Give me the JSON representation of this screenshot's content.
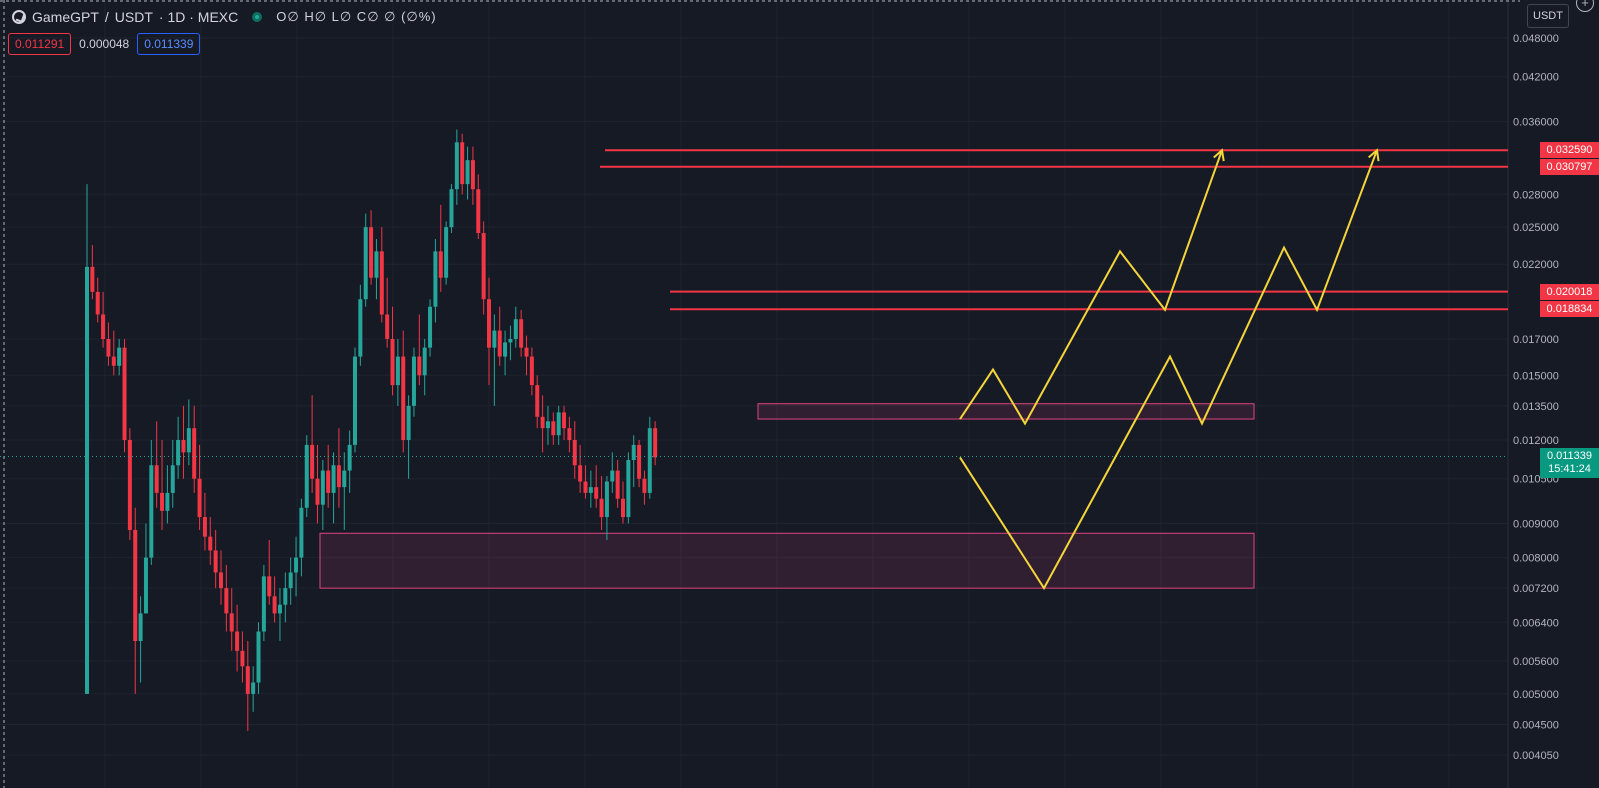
{
  "header": {
    "symbol": "GameGPT",
    "separator": "/",
    "quote": "USDT",
    "meta": "· 1D · MEXC",
    "ohlc": "O∅ H∅ L∅ C∅ ∅ (∅%)",
    "icons": [
      "logo-icon",
      "status-dot-icon"
    ]
  },
  "price_boxes": {
    "bid": "0.011291",
    "spread": "0.000048",
    "ask": "0.011339"
  },
  "toolbar": {
    "currency": "USDT",
    "add_icon": "plus-icon"
  },
  "colors": {
    "background": "#161a25",
    "up": "#26a69a",
    "down": "#f23645",
    "level_line": "#f23645",
    "zone_border": "#e0457d",
    "projection": "#f5d53a",
    "axis_text": "#b2b5be"
  },
  "axis_labels": [
    "0.048000",
    "0.042000",
    "0.036000",
    "0.028000",
    "0.025000",
    "0.022000",
    "0.017000",
    "0.015000",
    "0.013500",
    "0.012000",
    "0.010500",
    "0.009000",
    "0.008000",
    "0.007200",
    "0.006400",
    "0.005600",
    "0.005000",
    "0.004500",
    "0.004050"
  ],
  "level_tags": [
    "0.032590",
    "0.030797",
    "0.020018",
    "0.018834"
  ],
  "current_price": {
    "price": "0.011339",
    "countdown": "15:41:24"
  },
  "chart_data": {
    "type": "candlestick",
    "scale": "log",
    "ylim": [
      0.004,
      0.048
    ],
    "candles": [
      [
        0.005,
        0.029,
        0.005,
        0.0218
      ],
      [
        0.0218,
        0.0235,
        0.0195,
        0.02
      ],
      [
        0.02,
        0.021,
        0.018,
        0.0185
      ],
      [
        0.0185,
        0.02,
        0.0165,
        0.017
      ],
      [
        0.017,
        0.018,
        0.0155,
        0.016
      ],
      [
        0.016,
        0.0175,
        0.015,
        0.0155
      ],
      [
        0.0155,
        0.017,
        0.015,
        0.0165
      ],
      [
        0.0165,
        0.017,
        0.0115,
        0.012
      ],
      [
        0.012,
        0.0125,
        0.0085,
        0.0088
      ],
      [
        0.0088,
        0.0095,
        0.005,
        0.006
      ],
      [
        0.006,
        0.007,
        0.0052,
        0.0066
      ],
      [
        0.0066,
        0.009,
        0.0066,
        0.008
      ],
      [
        0.008,
        0.012,
        0.0078,
        0.011
      ],
      [
        0.011,
        0.0128,
        0.0095,
        0.01
      ],
      [
        0.01,
        0.012,
        0.0088,
        0.0094
      ],
      [
        0.0094,
        0.011,
        0.009,
        0.01
      ],
      [
        0.01,
        0.012,
        0.0095,
        0.011
      ],
      [
        0.011,
        0.013,
        0.0105,
        0.012
      ],
      [
        0.012,
        0.0135,
        0.0105,
        0.0115
      ],
      [
        0.0115,
        0.0138,
        0.011,
        0.0125
      ],
      [
        0.0125,
        0.0135,
        0.01,
        0.0105
      ],
      [
        0.0105,
        0.0118,
        0.0088,
        0.0092
      ],
      [
        0.0092,
        0.01,
        0.0082,
        0.0086
      ],
      [
        0.0086,
        0.0092,
        0.0078,
        0.0082
      ],
      [
        0.0082,
        0.0088,
        0.0072,
        0.0076
      ],
      [
        0.0076,
        0.0082,
        0.0068,
        0.0072
      ],
      [
        0.0072,
        0.0078,
        0.0062,
        0.0066
      ],
      [
        0.0066,
        0.0072,
        0.0058,
        0.0062
      ],
      [
        0.0062,
        0.0068,
        0.0054,
        0.0058
      ],
      [
        0.0058,
        0.0062,
        0.0052,
        0.0055
      ],
      [
        0.0055,
        0.006,
        0.0044,
        0.005
      ],
      [
        0.005,
        0.0055,
        0.0047,
        0.0052
      ],
      [
        0.0052,
        0.0064,
        0.005,
        0.0062
      ],
      [
        0.0062,
        0.0078,
        0.006,
        0.0075
      ],
      [
        0.0075,
        0.0085,
        0.0068,
        0.007
      ],
      [
        0.007,
        0.0075,
        0.0064,
        0.0066
      ],
      [
        0.0066,
        0.0072,
        0.006,
        0.0068
      ],
      [
        0.0068,
        0.0076,
        0.0064,
        0.0072
      ],
      [
        0.0072,
        0.008,
        0.0068,
        0.0076
      ],
      [
        0.0076,
        0.0086,
        0.007,
        0.008
      ],
      [
        0.008,
        0.0098,
        0.0075,
        0.0095
      ],
      [
        0.0095,
        0.0122,
        0.0092,
        0.0118
      ],
      [
        0.0118,
        0.014,
        0.01,
        0.0105
      ],
      [
        0.0105,
        0.0118,
        0.009,
        0.0096
      ],
      [
        0.0096,
        0.0112,
        0.0088,
        0.0108
      ],
      [
        0.0108,
        0.0118,
        0.0095,
        0.01
      ],
      [
        0.01,
        0.0115,
        0.009,
        0.011
      ],
      [
        0.011,
        0.0125,
        0.0095,
        0.0102
      ],
      [
        0.0102,
        0.0115,
        0.0088,
        0.0108
      ],
      [
        0.0108,
        0.0124,
        0.01,
        0.0118
      ],
      [
        0.0118,
        0.0165,
        0.0115,
        0.016
      ],
      [
        0.016,
        0.0205,
        0.0155,
        0.0195
      ],
      [
        0.0195,
        0.0262,
        0.019,
        0.025
      ],
      [
        0.025,
        0.0265,
        0.0205,
        0.021
      ],
      [
        0.021,
        0.024,
        0.0195,
        0.023
      ],
      [
        0.023,
        0.025,
        0.018,
        0.0185
      ],
      [
        0.0185,
        0.021,
        0.0165,
        0.017
      ],
      [
        0.017,
        0.019,
        0.014,
        0.0145
      ],
      [
        0.0145,
        0.017,
        0.0135,
        0.016
      ],
      [
        0.016,
        0.0175,
        0.0115,
        0.012
      ],
      [
        0.012,
        0.014,
        0.0105,
        0.0135
      ],
      [
        0.0135,
        0.0165,
        0.013,
        0.016
      ],
      [
        0.016,
        0.0185,
        0.0145,
        0.015
      ],
      [
        0.015,
        0.017,
        0.014,
        0.0165
      ],
      [
        0.0165,
        0.0195,
        0.016,
        0.019
      ],
      [
        0.019,
        0.024,
        0.018,
        0.023
      ],
      [
        0.023,
        0.027,
        0.02,
        0.021
      ],
      [
        0.021,
        0.0255,
        0.0205,
        0.025
      ],
      [
        0.025,
        0.029,
        0.0245,
        0.0285
      ],
      [
        0.0285,
        0.035,
        0.027,
        0.0335
      ],
      [
        0.0335,
        0.0345,
        0.028,
        0.029
      ],
      [
        0.029,
        0.033,
        0.0275,
        0.0315
      ],
      [
        0.0315,
        0.033,
        0.027,
        0.0285
      ],
      [
        0.0285,
        0.03,
        0.024,
        0.0245
      ],
      [
        0.0245,
        0.0255,
        0.0185,
        0.0195
      ],
      [
        0.0195,
        0.021,
        0.0145,
        0.0165
      ],
      [
        0.0165,
        0.0185,
        0.0135,
        0.0175
      ],
      [
        0.0175,
        0.019,
        0.0155,
        0.016
      ],
      [
        0.016,
        0.0175,
        0.015,
        0.0168
      ],
      [
        0.0168,
        0.0178,
        0.0158,
        0.017
      ],
      [
        0.017,
        0.019,
        0.0165,
        0.0182
      ],
      [
        0.0182,
        0.0188,
        0.016,
        0.0165
      ],
      [
        0.0165,
        0.0172,
        0.015,
        0.016
      ],
      [
        0.016,
        0.0165,
        0.014,
        0.0145
      ],
      [
        0.0145,
        0.015,
        0.0125,
        0.013
      ],
      [
        0.013,
        0.014,
        0.0115,
        0.0125
      ],
      [
        0.0125,
        0.0135,
        0.0118,
        0.0128
      ],
      [
        0.0128,
        0.0132,
        0.0118,
        0.0122
      ],
      [
        0.0122,
        0.0135,
        0.0118,
        0.0132
      ],
      [
        0.0132,
        0.0135,
        0.012,
        0.0125
      ],
      [
        0.0125,
        0.013,
        0.0115,
        0.012
      ],
      [
        0.012,
        0.0128,
        0.0105,
        0.011
      ],
      [
        0.011,
        0.0118,
        0.01,
        0.0104
      ],
      [
        0.0104,
        0.011,
        0.0098,
        0.01
      ],
      [
        0.01,
        0.0108,
        0.0095,
        0.0102
      ],
      [
        0.0102,
        0.011,
        0.0095,
        0.0098
      ],
      [
        0.0098,
        0.0106,
        0.0088,
        0.0092
      ],
      [
        0.0092,
        0.0106,
        0.0085,
        0.0104
      ],
      [
        0.0104,
        0.0115,
        0.01,
        0.0108
      ],
      [
        0.0108,
        0.0112,
        0.0095,
        0.0098
      ],
      [
        0.0098,
        0.0104,
        0.009,
        0.0092
      ],
      [
        0.0092,
        0.0115,
        0.009,
        0.0112
      ],
      [
        0.0112,
        0.0122,
        0.0102,
        0.0118
      ],
      [
        0.0118,
        0.012,
        0.0102,
        0.0105
      ],
      [
        0.0105,
        0.0108,
        0.0096,
        0.01
      ],
      [
        0.01,
        0.013,
        0.0098,
        0.0125
      ],
      [
        0.0125,
        0.0128,
        0.011,
        0.0113
      ]
    ],
    "levels": [
      0.03259,
      0.030797,
      0.020018,
      0.018834
    ],
    "zones": [
      {
        "from": 0.0129,
        "to": 0.0136
      },
      {
        "from": 0.0072,
        "to": 0.0087
      }
    ],
    "projections": [
      [
        [
          0.0129
        ],
        [
          0.0153
        ],
        [
          0.0127
        ],
        [
          0.023
        ],
        [
          0.0188
        ],
        [
          0.0326
        ]
      ],
      [
        [
          0.0113
        ],
        [
          0.0072
        ],
        [
          0.016
        ],
        [
          0.0127
        ],
        [
          0.0233
        ],
        [
          0.0188
        ],
        [
          0.0326
        ]
      ]
    ]
  }
}
